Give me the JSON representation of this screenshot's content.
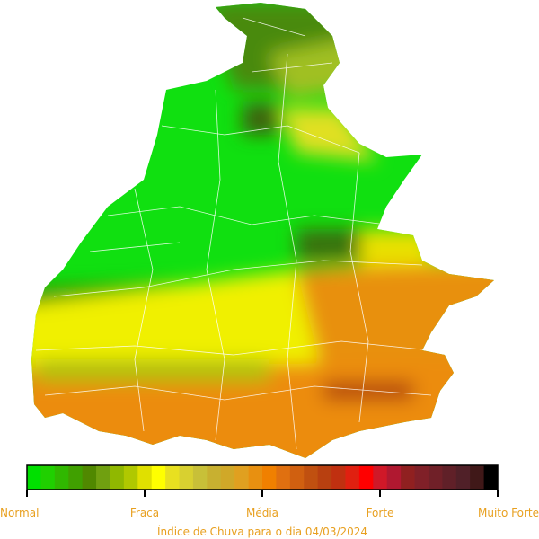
{
  "legend": {
    "labels": [
      "Normal",
      "Fraca",
      "Média",
      "Forte",
      "Muito Forte"
    ],
    "colors": [
      "#00e000",
      "#20d000",
      "#30b800",
      "#40a000",
      "#508800",
      "#70a010",
      "#90b800",
      "#b0c800",
      "#e0e000",
      "#ffff00",
      "#e8e020",
      "#d8d030",
      "#c8c038",
      "#c8b030",
      "#d0a828",
      "#e0a020",
      "#e89010",
      "#f08000",
      "#e07010",
      "#d06010",
      "#c05010",
      "#b84010",
      "#c03010",
      "#e02010",
      "#ff0000",
      "#d01828",
      "#b01830",
      "#902020",
      "#802028",
      "#702028",
      "#602028",
      "#502028",
      "#401818",
      "#000000"
    ]
  },
  "caption": "Índice de Chuva para o dia 04/03/2024"
}
